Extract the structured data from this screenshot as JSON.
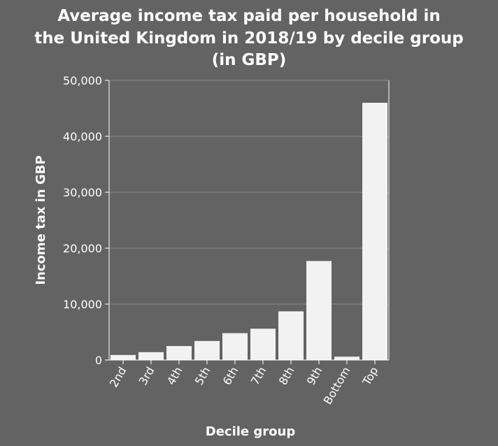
{
  "chart_data": {
    "type": "bar",
    "title_lines": [
      "Average income tax paid per household in",
      "the United Kingdom in 2018/19 by decile group",
      "(in GBP)"
    ],
    "xlabel": "Decile group",
    "ylabel": "Income tax in GBP",
    "categories": [
      "2nd",
      "3rd",
      "4th",
      "5th",
      "6th",
      "7th",
      "8th",
      "9th",
      "Bottom",
      "Top"
    ],
    "values": [
      900,
      1400,
      2500,
      3400,
      4800,
      5600,
      8700,
      17700,
      600,
      46000
    ],
    "ylim": [
      0,
      50000
    ],
    "yticks": [
      0,
      10000,
      20000,
      30000,
      40000,
      50000
    ],
    "ytick_labels": [
      "0",
      "10,000",
      "20,000",
      "30,000",
      "40,000",
      "50,000"
    ],
    "grid": true,
    "colors": {
      "background": "#636363",
      "bar": "#f2f2f2",
      "text": "#ffffff",
      "grid": "#8a8a8a",
      "axis": "#ffffff"
    }
  }
}
